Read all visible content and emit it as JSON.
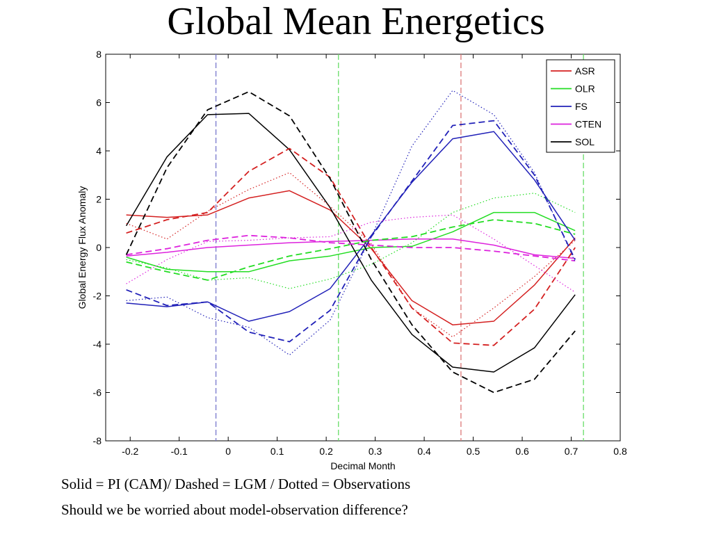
{
  "slide": {
    "title": "Global Mean Energetics",
    "caption_1": "Solid = PI (CAM)/ Dashed = LGM / Dotted = Observations",
    "caption_2": "Should we be worried about model-observation difference?"
  },
  "chart_data": {
    "type": "line",
    "title": "",
    "xlabel": "Decimal Month",
    "ylabel": "Global Energy Flux Anomaly",
    "xlim": [
      -0.25,
      0.8
    ],
    "ylim": [
      -8,
      8
    ],
    "xticks": [
      -0.2,
      -0.1,
      0,
      0.1,
      0.2,
      0.3,
      0.4,
      0.5,
      0.6,
      0.7,
      0.8
    ],
    "xtick_labels": [
      "-0.2",
      "-0.1",
      "0",
      "0.1",
      "0.2",
      "0.3",
      "0.4",
      "0.5",
      "0.6",
      "0.7",
      "0.8"
    ],
    "yticks": [
      -8,
      -6,
      -4,
      -2,
      0,
      2,
      4,
      6,
      8
    ],
    "ytick_labels": [
      "-8",
      "-6",
      "-4",
      "-2",
      "0",
      "2",
      "4",
      "6",
      "8"
    ],
    "grid": false,
    "legend_position": "top-right",
    "x": [
      -0.208,
      -0.125,
      -0.042,
      0.042,
      0.125,
      0.208,
      0.292,
      0.375,
      0.458,
      0.542,
      0.625,
      0.708
    ],
    "vertical_lines": [
      {
        "x": -0.025,
        "color": "#7777cc"
      },
      {
        "x": 0.225,
        "color": "#66dd66"
      },
      {
        "x": 0.475,
        "color": "#dd7777"
      },
      {
        "x": 0.725,
        "color": "#66dd66"
      }
    ],
    "series": [
      {
        "name": "ASR",
        "style": "solid",
        "color": "#d42020",
        "legend": true,
        "values": [
          1.35,
          1.25,
          1.35,
          2.05,
          2.35,
          1.55,
          -0.05,
          -2.2,
          -3.2,
          -3.05,
          -1.55,
          0.4
        ]
      },
      {
        "name": "OLR",
        "style": "solid",
        "color": "#22dd22",
        "legend": true,
        "values": [
          -0.4,
          -0.9,
          -1.0,
          -1.0,
          -0.55,
          -0.35,
          0.0,
          0.05,
          0.65,
          1.45,
          1.45,
          0.7
        ]
      },
      {
        "name": "FS",
        "style": "solid",
        "color": "#2020b8",
        "legend": true,
        "values": [
          -2.3,
          -2.45,
          -2.25,
          -3.05,
          -2.65,
          -1.7,
          0.5,
          2.7,
          4.5,
          4.8,
          2.8,
          0.3
        ]
      },
      {
        "name": "CTEN",
        "style": "solid",
        "color": "#dd22dd",
        "legend": true,
        "values": [
          -0.35,
          -0.2,
          0.0,
          0.1,
          0.2,
          0.25,
          0.3,
          0.35,
          0.35,
          0.1,
          -0.3,
          -0.45
        ]
      },
      {
        "name": "SOL",
        "style": "solid",
        "color": "#000000",
        "legend": true,
        "values": [
          0.9,
          3.75,
          5.5,
          5.55,
          4.05,
          1.65,
          -1.35,
          -3.6,
          -4.95,
          -5.15,
          -4.15,
          -1.95
        ]
      },
      {
        "style": "dashed",
        "color": "#d42020",
        "legend": false,
        "values": [
          0.6,
          1.15,
          1.45,
          3.15,
          4.1,
          2.9,
          0.0,
          -2.5,
          -3.95,
          -4.05,
          -2.55,
          0.0
        ]
      },
      {
        "style": "dashed",
        "color": "#22dd22",
        "legend": false,
        "values": [
          -0.6,
          -1.0,
          -1.35,
          -0.8,
          -0.35,
          -0.05,
          0.3,
          0.45,
          0.85,
          1.15,
          1.0,
          0.55
        ]
      },
      {
        "style": "dashed",
        "color": "#2020b8",
        "legend": false,
        "values": [
          -1.75,
          -2.4,
          -2.25,
          -3.5,
          -3.9,
          -2.6,
          0.45,
          2.75,
          5.05,
          5.25,
          3.0,
          -0.5
        ]
      },
      {
        "style": "dashed",
        "color": "#dd22dd",
        "legend": false,
        "values": [
          -0.3,
          -0.05,
          0.3,
          0.5,
          0.4,
          0.2,
          0.1,
          0.0,
          0.0,
          -0.15,
          -0.35,
          -0.55
        ]
      },
      {
        "style": "dashed",
        "color": "#000000",
        "legend": false,
        "values": [
          -0.3,
          3.3,
          5.7,
          6.45,
          5.45,
          2.85,
          -0.5,
          -3.2,
          -5.15,
          -6.0,
          -5.45,
          -3.45
        ]
      },
      {
        "style": "dotted",
        "color": "#d42020",
        "legend": false,
        "values": [
          1.0,
          0.35,
          1.5,
          2.4,
          3.1,
          1.7,
          0.15,
          -2.5,
          -3.7,
          -2.5,
          -1.2,
          0.3
        ]
      },
      {
        "style": "dotted",
        "color": "#22dd22",
        "legend": false,
        "values": [
          -0.5,
          -0.85,
          -1.35,
          -1.25,
          -1.7,
          -1.3,
          -0.7,
          0.2,
          1.45,
          2.05,
          2.25,
          1.45
        ]
      },
      {
        "style": "dotted",
        "color": "#2020b8",
        "legend": false,
        "values": [
          -2.2,
          -2.05,
          -2.9,
          -3.3,
          -4.45,
          -3.0,
          0.45,
          4.2,
          6.5,
          5.5,
          3.1,
          -0.6
        ]
      },
      {
        "style": "dotted",
        "color": "#dd22dd",
        "legend": false,
        "values": [
          -1.5,
          -0.5,
          0.25,
          0.3,
          0.4,
          0.45,
          1.05,
          1.25,
          1.35,
          0.35,
          -0.75,
          -1.85
        ]
      }
    ]
  }
}
